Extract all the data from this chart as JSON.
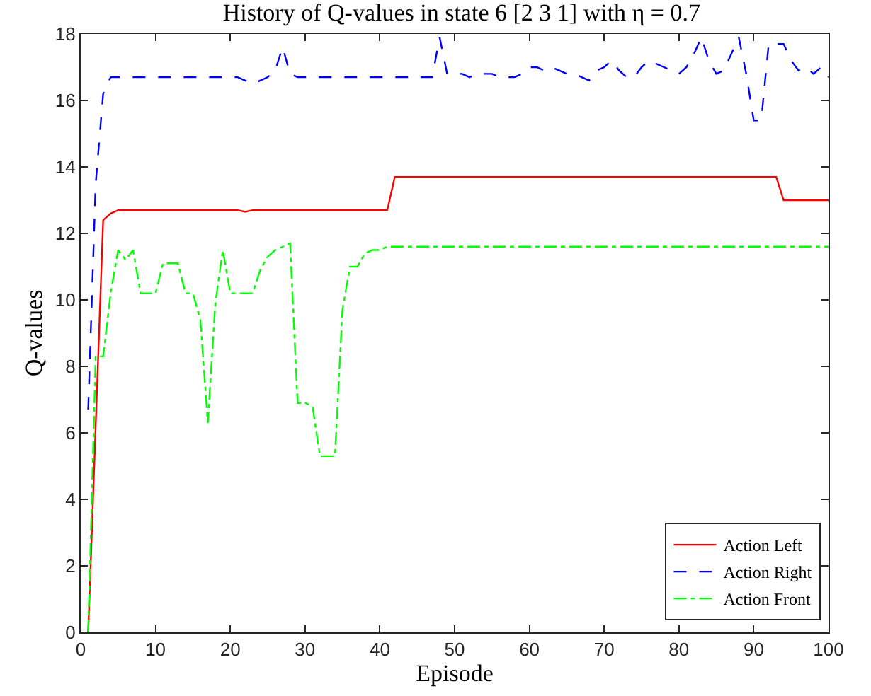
{
  "chart_data": {
    "type": "line",
    "title": "History of Q-values in state 6 [2 3 1] with η = 0.7",
    "xlabel": "Episode",
    "ylabel": "Q-values",
    "x": [
      1,
      2,
      3,
      4,
      5,
      6,
      7,
      8,
      9,
      10,
      11,
      12,
      13,
      14,
      15,
      16,
      17,
      18,
      19,
      20,
      21,
      22,
      23,
      24,
      25,
      26,
      27,
      28,
      29,
      30,
      31,
      32,
      33,
      34,
      35,
      36,
      37,
      38,
      39,
      40,
      41,
      42,
      43,
      44,
      45,
      46,
      47,
      48,
      49,
      50,
      51,
      52,
      53,
      54,
      55,
      56,
      57,
      58,
      59,
      60,
      61,
      62,
      63,
      64,
      65,
      66,
      67,
      68,
      69,
      70,
      71,
      72,
      73,
      74,
      75,
      76,
      77,
      78,
      79,
      80,
      81,
      82,
      83,
      84,
      85,
      86,
      87,
      88,
      89,
      90,
      91,
      92,
      93,
      94,
      95,
      96,
      97,
      98,
      99,
      100
    ],
    "series": [
      {
        "name": "Action Left",
        "color": "#ff0000",
        "line_style": "solid",
        "values": [
          0,
          6.2,
          12.4,
          12.6,
          12.7,
          12.7,
          12.7,
          12.7,
          12.7,
          12.7,
          12.7,
          12.7,
          12.7,
          12.7,
          12.7,
          12.7,
          12.7,
          12.7,
          12.7,
          12.7,
          12.7,
          12.65,
          12.7,
          12.7,
          12.7,
          12.7,
          12.7,
          12.7,
          12.7,
          12.7,
          12.7,
          12.7,
          12.7,
          12.7,
          12.7,
          12.7,
          12.7,
          12.7,
          12.7,
          12.7,
          12.7,
          13.7,
          13.7,
          13.7,
          13.7,
          13.7,
          13.7,
          13.7,
          13.7,
          13.7,
          13.7,
          13.7,
          13.7,
          13.7,
          13.7,
          13.7,
          13.7,
          13.7,
          13.7,
          13.7,
          13.7,
          13.7,
          13.7,
          13.7,
          13.7,
          13.7,
          13.7,
          13.7,
          13.7,
          13.7,
          13.7,
          13.7,
          13.7,
          13.7,
          13.7,
          13.7,
          13.7,
          13.7,
          13.7,
          13.7,
          13.7,
          13.7,
          13.7,
          13.7,
          13.7,
          13.7,
          13.7,
          13.7,
          13.7,
          13.7,
          13.7,
          13.7,
          13.7,
          13.0,
          13.0,
          13.0,
          13.0,
          13.0,
          13.0,
          13.0
        ]
      },
      {
        "name": "Action Right",
        "color": "#0000ff",
        "line_style": "dashed",
        "values": [
          6.7,
          13.5,
          16.2,
          16.7,
          16.7,
          16.7,
          16.7,
          16.7,
          16.7,
          16.7,
          16.7,
          16.7,
          16.7,
          16.7,
          16.7,
          16.7,
          16.7,
          16.7,
          16.7,
          16.7,
          16.7,
          16.6,
          16.5,
          16.6,
          16.7,
          16.9,
          17.6,
          16.8,
          16.7,
          16.7,
          16.7,
          16.7,
          16.7,
          16.7,
          16.7,
          16.7,
          16.7,
          16.7,
          16.7,
          16.7,
          16.7,
          16.7,
          16.7,
          16.7,
          16.7,
          16.7,
          16.7,
          17.9,
          16.8,
          16.8,
          16.8,
          16.7,
          16.8,
          16.8,
          16.8,
          16.7,
          16.7,
          16.7,
          16.8,
          17.0,
          17.0,
          16.9,
          17.0,
          16.9,
          16.8,
          16.8,
          16.7,
          16.6,
          16.9,
          17.0,
          17.2,
          16.9,
          16.7,
          16.7,
          17.0,
          17.2,
          17.1,
          17.0,
          16.9,
          16.8,
          17.0,
          17.4,
          17.9,
          17.2,
          16.8,
          16.9,
          17.4,
          17.9,
          16.8,
          15.4,
          15.4,
          17.7,
          17.7,
          17.7,
          17.2,
          16.9,
          17.0,
          16.8,
          17.0,
          16.7
        ]
      },
      {
        "name": "Action Front",
        "color": "#00ff00",
        "line_style": "dashdot",
        "values": [
          0,
          8.3,
          8.3,
          10.2,
          11.5,
          11.2,
          11.5,
          10.2,
          10.2,
          10.2,
          11.1,
          11.1,
          11.1,
          10.2,
          10.2,
          9.4,
          6.3,
          9.9,
          11.5,
          10.2,
          10.2,
          10.2,
          10.2,
          10.9,
          11.3,
          11.5,
          11.6,
          11.7,
          6.9,
          6.9,
          6.8,
          5.3,
          5.3,
          5.3,
          9.7,
          11.0,
          11.0,
          11.4,
          11.5,
          11.5,
          11.6,
          11.6,
          11.6,
          11.6,
          11.6,
          11.6,
          11.6,
          11.6,
          11.6,
          11.6,
          11.6,
          11.6,
          11.6,
          11.6,
          11.6,
          11.6,
          11.6,
          11.6,
          11.6,
          11.6,
          11.6,
          11.6,
          11.6,
          11.6,
          11.6,
          11.6,
          11.6,
          11.6,
          11.6,
          11.6,
          11.6,
          11.6,
          11.6,
          11.6,
          11.6,
          11.6,
          11.6,
          11.6,
          11.6,
          11.6,
          11.6,
          11.6,
          11.6,
          11.6,
          11.6,
          11.6,
          11.6,
          11.6,
          11.6,
          11.6,
          11.6,
          11.6,
          11.6,
          11.6,
          11.6,
          11.6,
          11.6,
          11.6,
          11.6,
          11.6
        ]
      }
    ],
    "xlim": [
      0,
      100
    ],
    "xticks": [
      0,
      10,
      20,
      30,
      40,
      50,
      60,
      70,
      80,
      90,
      100
    ],
    "ylim": [
      0,
      18
    ],
    "yticks": [
      0,
      2,
      4,
      6,
      8,
      10,
      12,
      14,
      16,
      18
    ],
    "grid": false,
    "legend": "bottom right",
    "marker": "none"
  }
}
